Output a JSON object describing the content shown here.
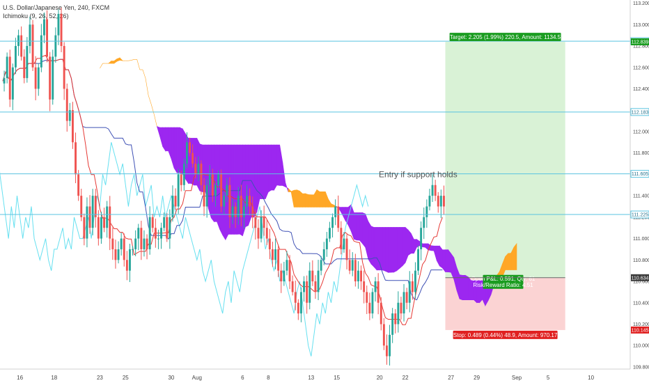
{
  "header": {
    "symbol": "U.S. Dollar/Japanese Yen, 240, FXCM",
    "indicator": "Ichimoku (9, 26, 52, 26)"
  },
  "chart_data": {
    "type": "candlestick",
    "ylim": [
      109.78,
      113.23
    ],
    "y_ticks": [
      113.2,
      113.0,
      112.8,
      112.6,
      112.4,
      112.2,
      112.0,
      111.8,
      111.6,
      111.4,
      111.2,
      111.0,
      110.8,
      110.6,
      110.4,
      110.2,
      110.0,
      109.8
    ],
    "y_tick_labels": [
      "113.200",
      "113.000",
      "112.800",
      "112.600",
      "112.400",
      "112.200",
      "112.000",
      "111.800",
      "111.600",
      "111.400",
      "111.200",
      "111.000",
      "110.800",
      "110.600",
      "110.400",
      "110.200",
      "110.000",
      "109.800"
    ],
    "x_ticks": [
      {
        "label": "16",
        "bar": 6
      },
      {
        "label": "18",
        "bar": 18
      },
      {
        "label": "23",
        "bar": 34
      },
      {
        "label": "25",
        "bar": 43
      },
      {
        "label": "30",
        "bar": 59
      },
      {
        "label": "Aug",
        "bar": 68
      },
      {
        "label": "6",
        "bar": 84
      },
      {
        "label": "8",
        "bar": 93
      },
      {
        "label": "13",
        "bar": 108
      },
      {
        "label": "15",
        "bar": 117
      },
      {
        "label": "20",
        "bar": 132
      },
      {
        "label": "22",
        "bar": 141
      },
      {
        "label": "27",
        "bar": 157
      },
      {
        "label": "29",
        "bar": 166
      },
      {
        "label": "Sep",
        "bar": 180
      },
      {
        "label": "5",
        "bar": 191
      },
      {
        "label": "10",
        "bar": 206
      }
    ],
    "last_bar": 154,
    "ohlc_close_sample": [
      112.5,
      112.7,
      112.3,
      112.6,
      112.8,
      112.9,
      112.7,
      112.5,
      112.8,
      113.0,
      112.6,
      112.4,
      112.6,
      112.9,
      113.05,
      112.7,
      112.3,
      112.7,
      112.9,
      113.1,
      112.8,
      112.4,
      112.1,
      112.2,
      111.9,
      111.6,
      111.4,
      111.2,
      111.0,
      111.3,
      111.1,
      111.4,
      111.2,
      111.0,
      111.2,
      111.1,
      111.3,
      111.0,
      110.9,
      110.8,
      110.9,
      111.0,
      110.8,
      110.7,
      110.9,
      110.9,
      111.0,
      111.1,
      110.9,
      111.0,
      110.9,
      111.2,
      111.1,
      111.0,
      111.0,
      111.1,
      111.2,
      111.0,
      111.2,
      111.4,
      111.3,
      111.6,
      111.5,
      111.7,
      111.9,
      111.8,
      111.7,
      111.6,
      111.7,
      111.5,
      111.3,
      111.5,
      111.6,
      111.4,
      111.5,
      111.6,
      111.3,
      111.4,
      111.5,
      111.2,
      111.3,
      111.2,
      111.4,
      111.2,
      111.3,
      111.4,
      111.3,
      111.2,
      111.1,
      111.0,
      111.2,
      111.1,
      111.0,
      110.9,
      110.8,
      110.9,
      110.7,
      110.6,
      110.7,
      110.8,
      110.6,
      110.5,
      110.4,
      110.3,
      110.5,
      110.6,
      110.4,
      110.7,
      110.6,
      110.5,
      110.7,
      110.8,
      110.9,
      111.0,
      111.1,
      111.2,
      111.3,
      111.1,
      110.9,
      111.0,
      110.8,
      110.7,
      110.8,
      110.6,
      110.7,
      110.6,
      110.5,
      110.4,
      110.3,
      110.5,
      110.6,
      110.4,
      110.2,
      110.0,
      109.9,
      110.1,
      110.3,
      110.2,
      110.4,
      110.3,
      110.5,
      110.4,
      110.6,
      110.5,
      110.7,
      110.9,
      111.1,
      111.2,
      111.3,
      111.4,
      111.5,
      111.4,
      111.3,
      111.4,
      111.3
    ],
    "horizontal_lines": [
      {
        "value": 112.845,
        "label": "112.845",
        "color": "#59c3e0"
      },
      {
        "value": 112.183,
        "label": "112.183",
        "color": "#59c3e0"
      },
      {
        "value": 111.605,
        "label": "111.605",
        "color": "#59c3e0"
      },
      {
        "value": 111.225,
        "label": "111.225",
        "color": "#59c3e0"
      }
    ],
    "price_tags": [
      {
        "value": 112.839,
        "label": "112.839",
        "color": "#1a9c20"
      },
      {
        "value": 110.634,
        "label": "110.634",
        "color": "#3d3d3d"
      },
      {
        "value": 110.145,
        "label": "110.145",
        "color": "#e02020"
      }
    ],
    "position": {
      "entry": 110.634,
      "target_price": 112.839,
      "stop_price": 110.145,
      "start_bar": 155,
      "end_bar": 197,
      "target_label": "Target: 2.205 (1.99%) 220.5, Amount: 1134.5",
      "stop_label": "Stop: 0.489 (0.44%) 48.9, Amount: 970.17",
      "pnl_label": "Open P&L: 0.591, Qty: 61",
      "ratio_label": "Risk/Reward Ratio: 4.51"
    },
    "annotation": "Entry if support holds",
    "colors": {
      "up": "#26a69a",
      "down": "#ef5350",
      "tenkan": "#e53935",
      "kijun": "#3f51b5",
      "chikou": "#66e0f0",
      "cloud_bull": "#ffa726",
      "cloud_bear": "#9c27f0",
      "target_zone": "#d9f2d6",
      "stop_zone": "#fbd3d3",
      "hline": "#59c3e0"
    }
  }
}
